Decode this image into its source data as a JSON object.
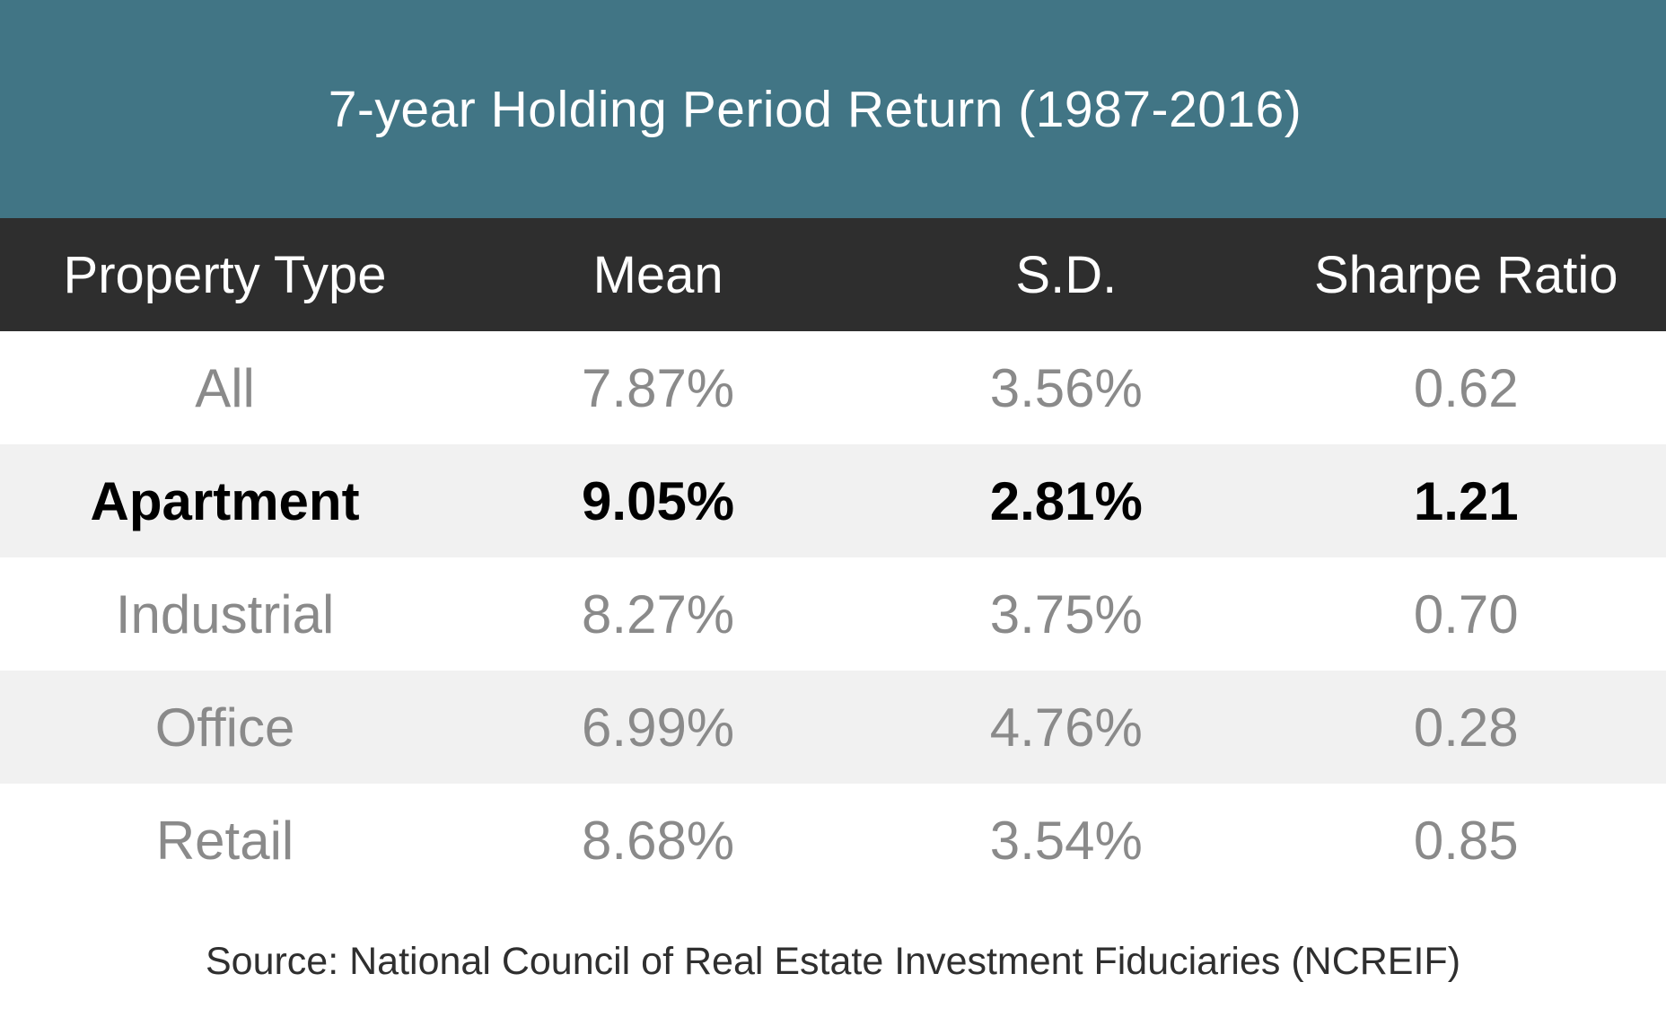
{
  "title": "7-year Holding Period Return (1987-2016)",
  "colors": {
    "title_band_background": "#417585",
    "header_row_background": "#2e2e2e",
    "row_background_white": "#ffffff",
    "row_background_alt": "#f1f1f1",
    "data_text_gray": "#8a8a8a",
    "highlight_text": "#000000",
    "header_text": "#ffffff",
    "title_text": "#ffffff",
    "source_text": "#2f2f2f"
  },
  "table": {
    "columns": [
      "Property Type",
      "Mean",
      "S.D.",
      "Sharpe Ratio"
    ],
    "rows": [
      {
        "property_type": "All",
        "mean": "7.87%",
        "sd": "3.56%",
        "sharpe": "0.62",
        "highlight": false
      },
      {
        "property_type": "Apartment",
        "mean": "9.05%",
        "sd": "2.81%",
        "sharpe": "1.21",
        "highlight": true
      },
      {
        "property_type": "Industrial",
        "mean": "8.27%",
        "sd": "3.75%",
        "sharpe": "0.70",
        "highlight": false
      },
      {
        "property_type": "Office",
        "mean": "6.99%",
        "sd": "4.76%",
        "sharpe": "0.28",
        "highlight": false
      },
      {
        "property_type": "Retail",
        "mean": "8.68%",
        "sd": "3.54%",
        "sharpe": "0.85",
        "highlight": false
      }
    ]
  },
  "source": "Source: National Council of Real Estate Investment Fiduciaries (NCREIF)"
}
